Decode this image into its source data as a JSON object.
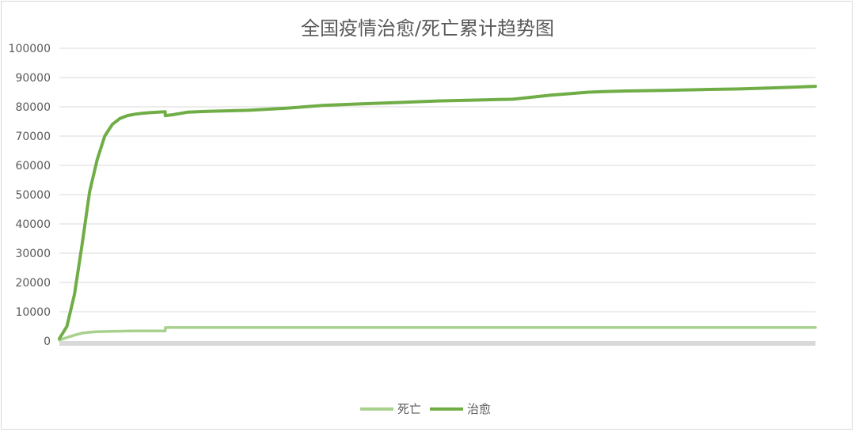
{
  "chart_data": {
    "type": "line",
    "title": "全国疫情治愈/死亡累计趋势图",
    "xlabel": "",
    "ylabel": "",
    "ylim": [
      0,
      100000
    ],
    "yticks": [
      0,
      10000,
      20000,
      30000,
      40000,
      50000,
      60000,
      70000,
      80000,
      90000,
      100000
    ],
    "grid": true,
    "legend_position": "bottom",
    "x": [
      0,
      0.01,
      0.02,
      0.03,
      0.04,
      0.05,
      0.06,
      0.07,
      0.08,
      0.09,
      0.1,
      0.11,
      0.12,
      0.13,
      0.14,
      0.14,
      0.15,
      0.17,
      0.2,
      0.25,
      0.3,
      0.35,
      0.4,
      0.45,
      0.5,
      0.55,
      0.6,
      0.65,
      0.7,
      0.72,
      0.75,
      0.8,
      0.85,
      0.9,
      0.95,
      1.0
    ],
    "series": [
      {
        "name": "死亡",
        "color": "#a9d18e",
        "values": [
          300,
          1200,
          2000,
          2700,
          3000,
          3200,
          3250,
          3300,
          3350,
          3400,
          3450,
          3450,
          3450,
          3450,
          3450,
          4600,
          4630,
          4630,
          4630,
          4630,
          4630,
          4630,
          4630,
          4630,
          4630,
          4630,
          4630,
          4630,
          4630,
          4630,
          4630,
          4630,
          4630,
          4630,
          4630,
          4630
        ]
      },
      {
        "name": "治愈",
        "color": "#70ad47",
        "values": [
          800,
          5000,
          16000,
          33000,
          51000,
          62000,
          70000,
          74000,
          76000,
          77000,
          77500,
          77800,
          78000,
          78200,
          78300,
          77000,
          77300,
          78200,
          78500,
          78800,
          79500,
          80500,
          81000,
          81500,
          82000,
          82300,
          82600,
          84000,
          85000,
          85200,
          85400,
          85600,
          85900,
          86100,
          86500,
          87000
        ]
      }
    ]
  }
}
